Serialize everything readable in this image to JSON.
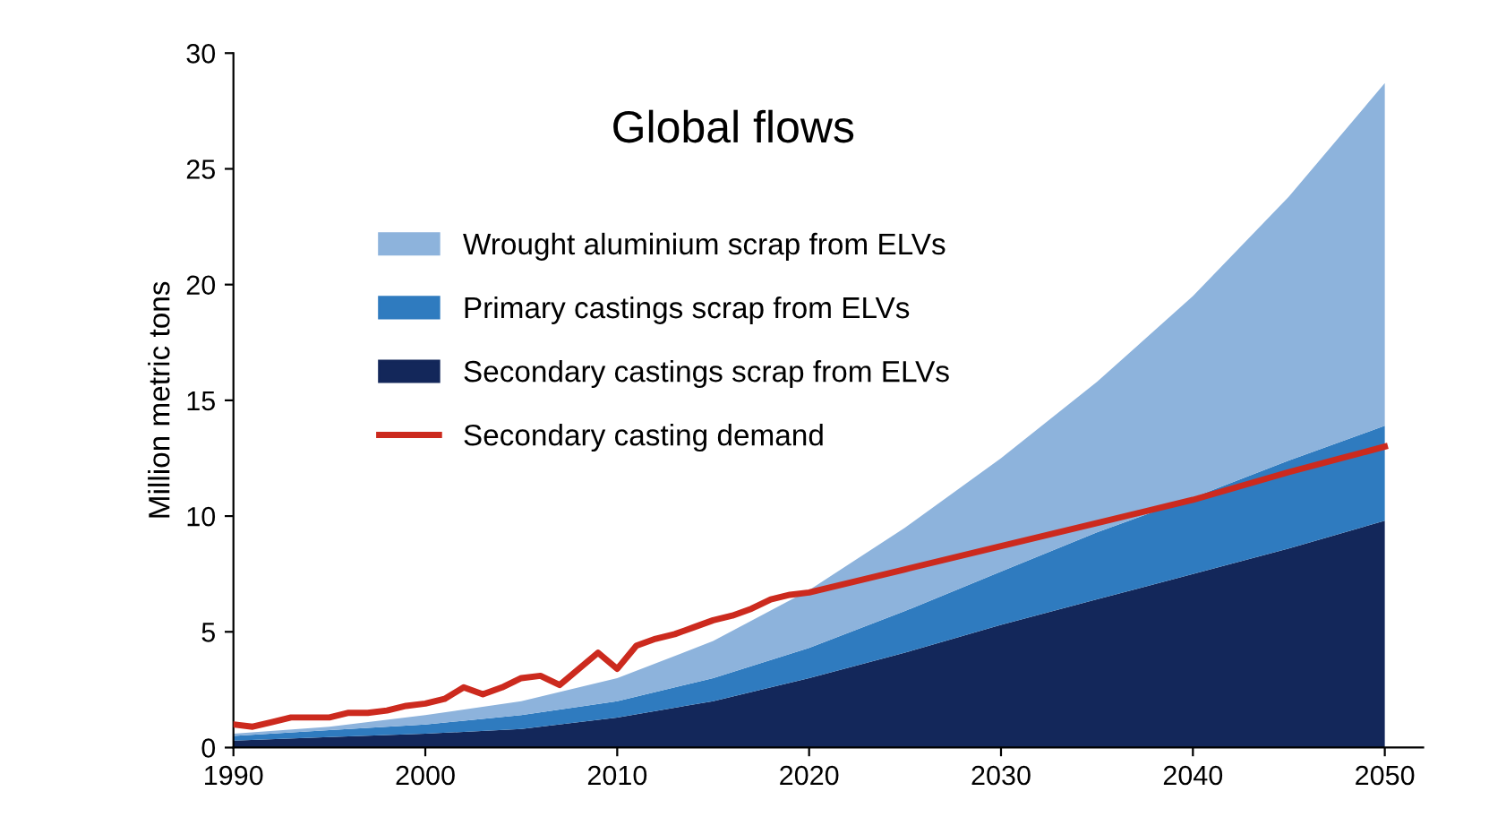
{
  "chart_data": {
    "type": "area",
    "stacked": true,
    "title": "Global flows",
    "ylabel": "Million metric tons",
    "x": [
      1990,
      1995,
      2000,
      2005,
      2010,
      2015,
      2020,
      2025,
      2030,
      2035,
      2040,
      2045,
      2050
    ],
    "xlim": [
      1990,
      2052
    ],
    "xticks": [
      1990,
      2000,
      2010,
      2020,
      2030,
      2040,
      2050
    ],
    "ylim": [
      0,
      30
    ],
    "yticks": [
      0,
      5,
      10,
      15,
      20,
      25,
      30
    ],
    "legend": "top left",
    "grid": false,
    "series": [
      {
        "name": "Secondary castings scrap from ELVs",
        "color": "#13275a",
        "values": [
          0.3,
          0.45,
          0.6,
          0.8,
          1.3,
          2.0,
          3.0,
          4.1,
          5.3,
          6.4,
          7.5,
          8.6,
          9.8
        ]
      },
      {
        "name": "Primary castings scrap from ELVs",
        "color": "#2f7bbf",
        "values": [
          0.2,
          0.3,
          0.4,
          0.6,
          0.7,
          1.0,
          1.3,
          1.8,
          2.3,
          2.9,
          3.3,
          3.8,
          4.1
        ]
      },
      {
        "name": "Wrought aluminium scrap from ELVs",
        "color": "#8db3dc",
        "values": [
          0.1,
          0.15,
          0.4,
          0.6,
          1.0,
          1.6,
          2.5,
          3.6,
          4.9,
          6.5,
          8.7,
          11.4,
          14.8
        ]
      },
      {
        "name": "Secondary casting demand",
        "color": "#cc2a1e",
        "type": "line",
        "line_style": "solid",
        "marker": "none",
        "x": [
          1990,
          1991,
          1992,
          1993,
          1994,
          1995,
          1996,
          1997,
          1998,
          1999,
          2000,
          2001,
          2002,
          2003,
          2004,
          2005,
          2006,
          2007,
          2008,
          2009,
          2010,
          2011,
          2012,
          2013,
          2014,
          2015,
          2016,
          2017,
          2018,
          2019,
          2020,
          2025,
          2030,
          2035,
          2040,
          2045,
          2050
        ],
        "values": [
          1.0,
          0.9,
          1.1,
          1.3,
          1.3,
          1.3,
          1.5,
          1.5,
          1.6,
          1.8,
          1.9,
          2.1,
          2.6,
          2.3,
          2.6,
          3.0,
          3.1,
          2.7,
          3.4,
          4.1,
          3.4,
          4.4,
          4.7,
          4.9,
          5.2,
          5.5,
          5.7,
          6.0,
          6.4,
          6.6,
          6.7,
          7.7,
          8.7,
          9.7,
          10.7,
          11.9,
          13.0
        ]
      }
    ]
  }
}
